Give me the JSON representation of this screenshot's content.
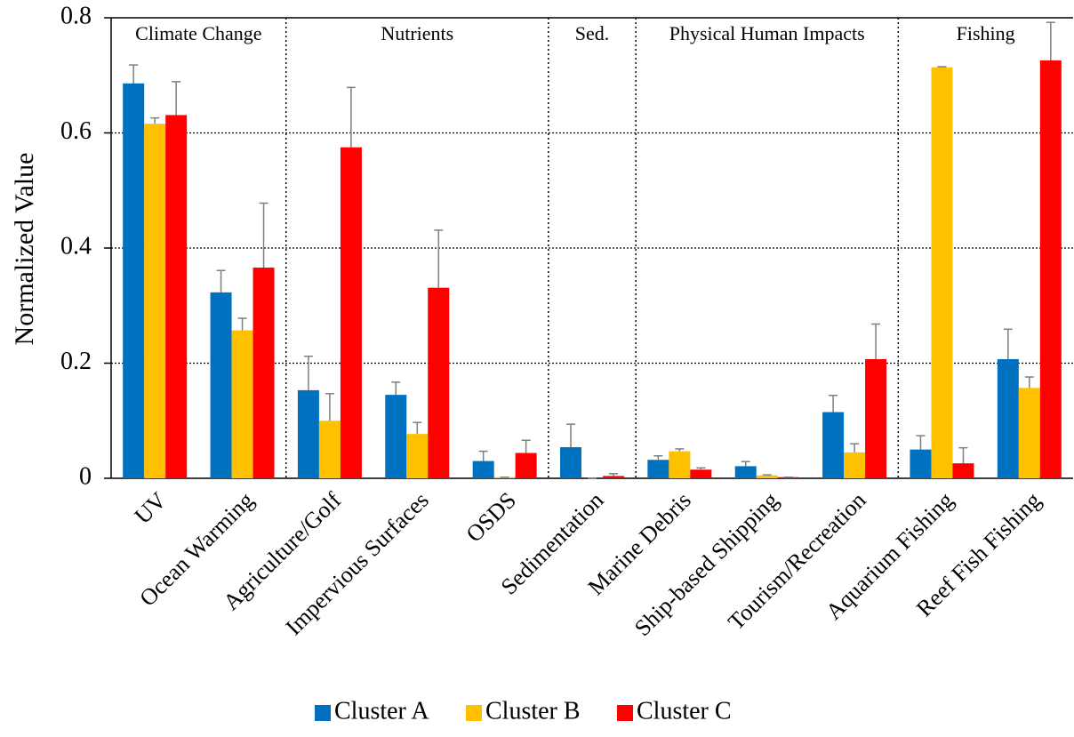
{
  "chart_data": {
    "type": "bar",
    "y_label": "Normalized Value",
    "categories": [
      "UV",
      "Ocean Warming",
      "Agriculture/Golf",
      "Impervious Surfaces",
      "OSDS",
      "Sedimentation",
      "Marine Debris",
      "Ship-based Shipping",
      "Tourism/Recreation",
      "Aquarium Fishing",
      "Reef Fish Fishing"
    ],
    "groups": [
      {
        "label": "Climate Change",
        "categories": [
          "UV",
          "Ocean Warming"
        ]
      },
      {
        "label": "Nutrients",
        "categories": [
          "Agriculture/Golf",
          "Impervious Surfaces",
          "OSDS"
        ]
      },
      {
        "label": "Sed.",
        "categories": [
          "Sedimentation"
        ]
      },
      {
        "label": "Physical Human Impacts",
        "categories": [
          "Marine Debris",
          "Ship-based Shipping",
          "Tourism/Recreation"
        ]
      },
      {
        "label": "Fishing",
        "categories": [
          "Aquarium Fishing",
          "Reef Fish Fishing"
        ]
      }
    ],
    "series": [
      {
        "name": "Cluster A",
        "color": "#0070c0",
        "values": [
          0.686,
          0.323,
          0.153,
          0.145,
          0.03,
          0.054,
          0.032,
          0.021,
          0.115,
          0.05,
          0.207
        ],
        "errors": [
          0.032,
          0.038,
          0.059,
          0.022,
          0.017,
          0.04,
          0.007,
          0.008,
          0.029,
          0.024,
          0.052
        ]
      },
      {
        "name": "Cluster B",
        "color": "#ffc000",
        "values": [
          0.616,
          0.257,
          0.1,
          0.077,
          0.002,
          0,
          0.047,
          0.005,
          0.045,
          0.714,
          0.157
        ],
        "errors": [
          0.01,
          0.021,
          0.047,
          0.02,
          0,
          0,
          0.004,
          0.001,
          0.015,
          0.001,
          0.019
        ]
      },
      {
        "name": "Cluster C",
        "color": "#ff0000",
        "values": [
          0.631,
          0.366,
          0.575,
          0.331,
          0.044,
          0.004,
          0.015,
          0.002,
          0.207,
          0.026,
          0.726
        ],
        "errors": [
          0.058,
          0.112,
          0.104,
          0.1,
          0.022,
          0.004,
          0.003,
          0,
          0.061,
          0.027,
          0.066
        ]
      }
    ],
    "ylim": [
      0,
      0.8
    ],
    "yticks": [
      0,
      0.2,
      0.4,
      0.6,
      0.8
    ],
    "grid": true,
    "legend": "bottom"
  }
}
